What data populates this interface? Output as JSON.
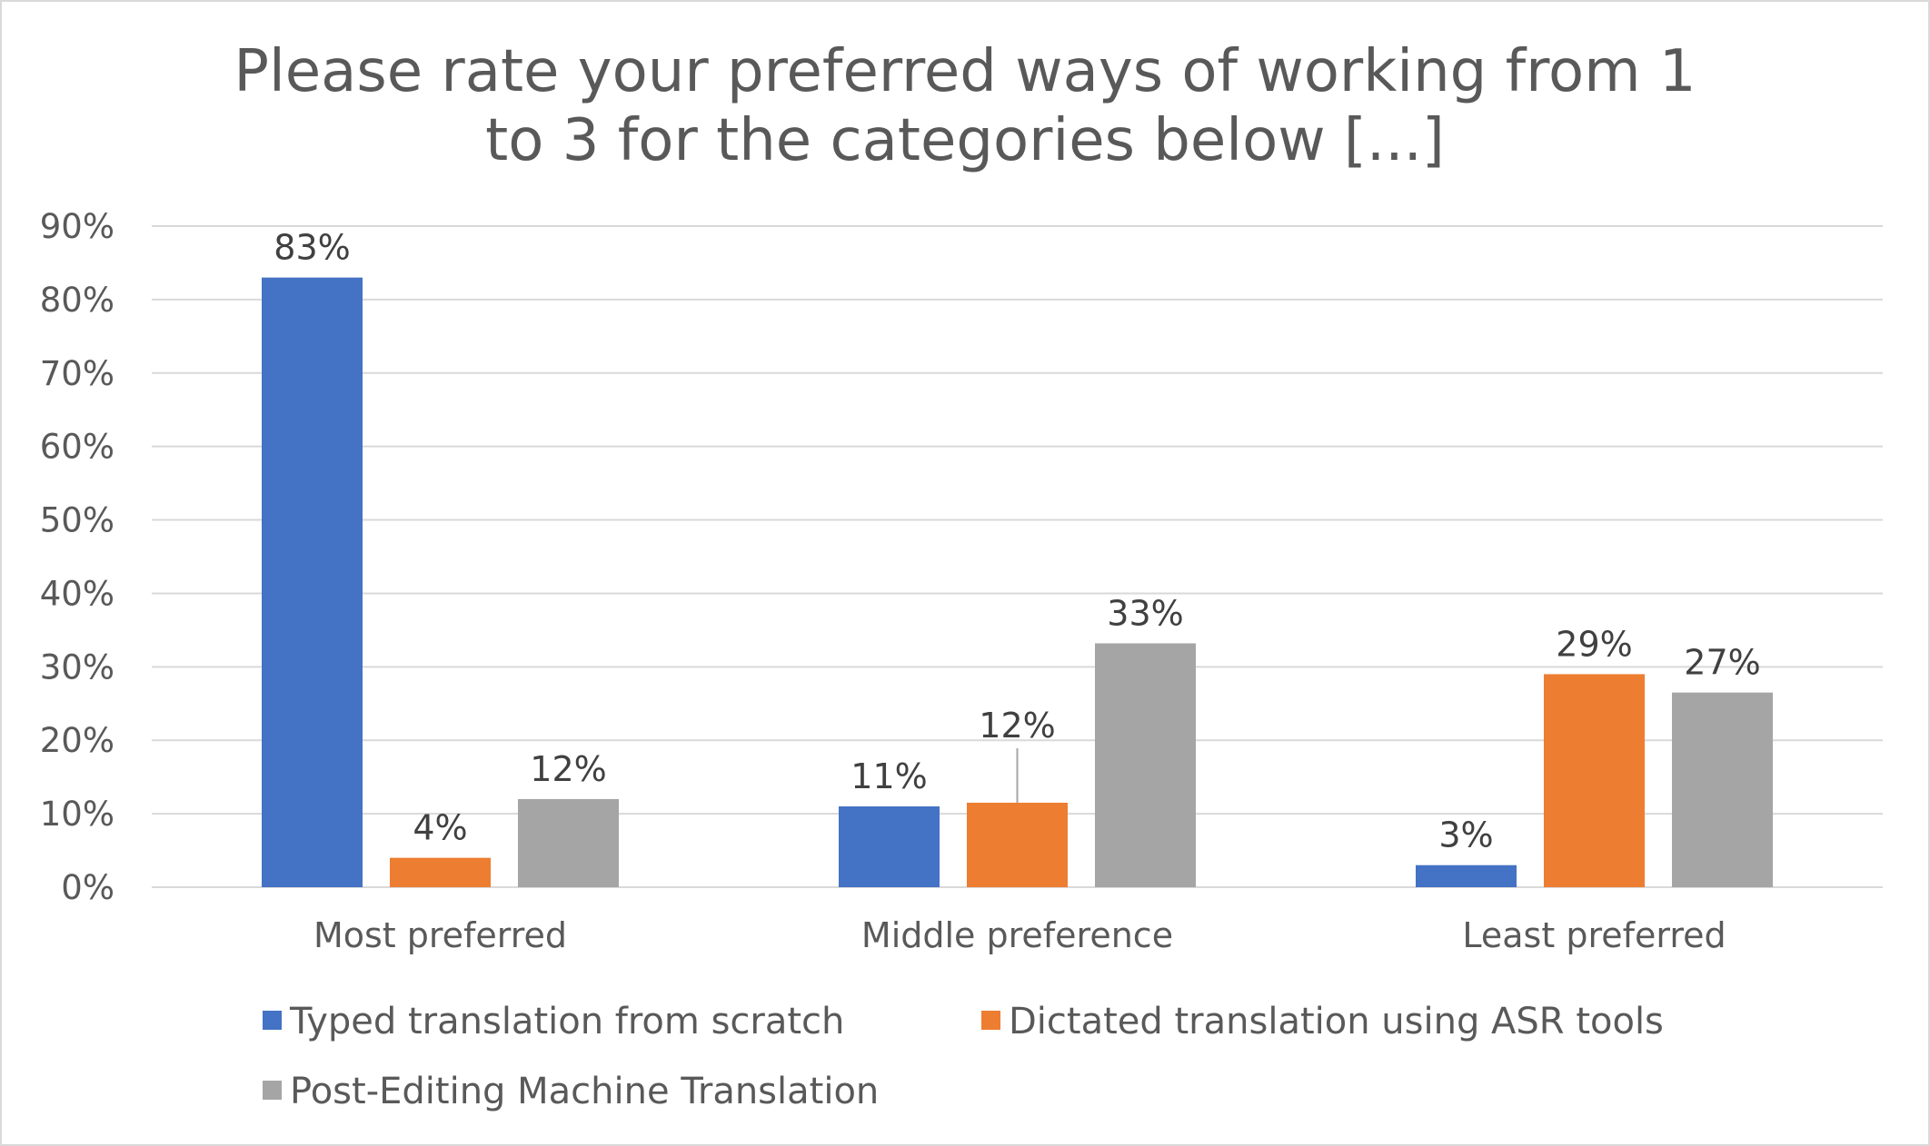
{
  "chart_data": {
    "type": "bar",
    "title_lines": [
      "Please rate your preferred ways of working from 1",
      "to 3 for the categories below [...]"
    ],
    "categories": [
      "Most preferred",
      "Middle preference",
      "Least preferred"
    ],
    "series": [
      {
        "name": "Typed translation from scratch",
        "color": "#4472C4",
        "values": [
          83,
          11,
          3
        ],
        "labels": [
          "83%",
          "11%",
          "3%"
        ]
      },
      {
        "name": "Dictated translation using ASR tools",
        "color": "#ED7D31",
        "values": [
          4,
          11.5,
          29
        ],
        "labels": [
          "4%",
          "12%",
          "29%"
        ]
      },
      {
        "name": "Post-Editing Machine Translation",
        "color": "#A5A5A5",
        "values": [
          12,
          33.2,
          26.5
        ],
        "labels": [
          "12%",
          "33%",
          "27%"
        ]
      }
    ],
    "ylim": [
      0,
      90
    ],
    "yticks": [
      0,
      10,
      20,
      30,
      40,
      50,
      60,
      70,
      80,
      90
    ],
    "ytick_labels": [
      "0%",
      "10%",
      "20%",
      "30%",
      "40%",
      "50%",
      "60%",
      "70%",
      "80%",
      "90%"
    ],
    "grid": true,
    "legend_position": "bottom",
    "xlabel": "",
    "ylabel": ""
  }
}
